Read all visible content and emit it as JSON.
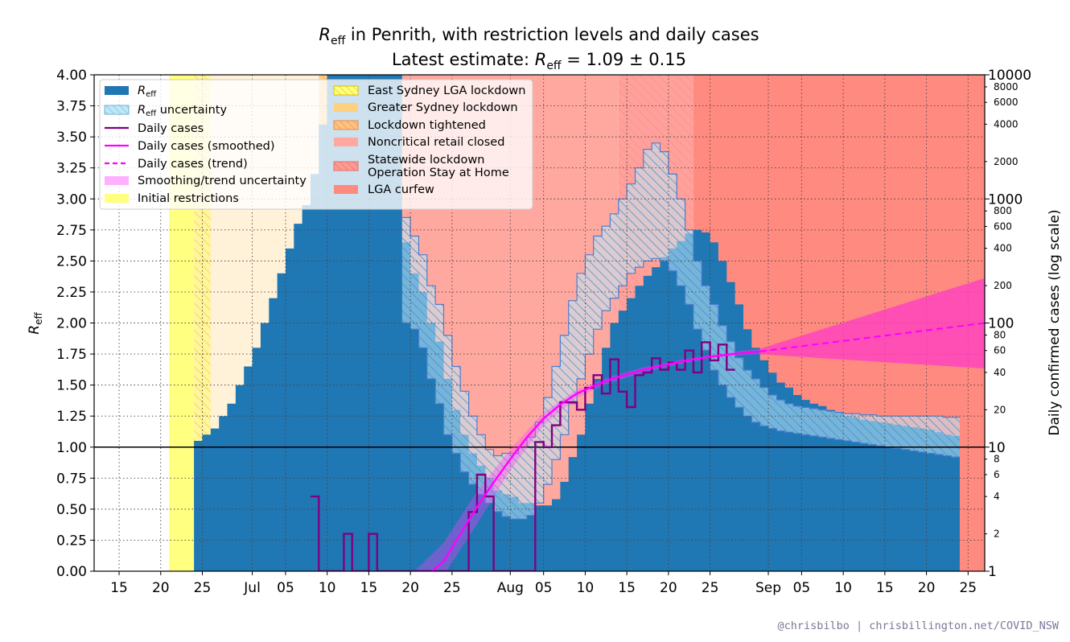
{
  "chart_data": {
    "type": "step-line",
    "title": "R_eff in Penrith, with restriction levels and daily cases",
    "subtitle": "Latest estimate: R_eff = 1.09 ± 0.15",
    "title_parts": {
      "r": "R",
      "eff": "eff",
      "title_rest": " in Penrith, with restriction levels and daily cases",
      "sub_pre": "Latest estimate: ",
      "sub_post": " = 1.09 ± 0.15"
    },
    "ylabel_left": "R_eff",
    "ylabel_right": "Daily confirmed cases (log scale)",
    "credit": "@chrisbilbo | chrisbillington.net/COVID_NSW",
    "x_range": [
      "2021-06-12",
      "2021-09-27"
    ],
    "y_left_range": [
      0,
      4
    ],
    "y_right_range": [
      1,
      10000
    ],
    "y_right_scale": "log",
    "grid": true,
    "x_ticks": [
      "15",
      "20",
      "25",
      "Jul",
      "05",
      "10",
      "15",
      "20",
      "25",
      "Aug",
      "05",
      "10",
      "15",
      "20",
      "25",
      "Sep",
      "05",
      "10",
      "15",
      "20",
      "25"
    ],
    "x_tick_dates": [
      "2021-06-15",
      "2021-06-20",
      "2021-06-25",
      "2021-07-01",
      "2021-07-05",
      "2021-07-10",
      "2021-07-15",
      "2021-07-20",
      "2021-07-25",
      "2021-08-01",
      "2021-08-05",
      "2021-08-10",
      "2021-08-15",
      "2021-08-20",
      "2021-08-25",
      "2021-09-01",
      "2021-09-05",
      "2021-09-10",
      "2021-09-15",
      "2021-09-20",
      "2021-09-25"
    ],
    "y_left_ticks": [
      "0.00",
      "0.25",
      "0.50",
      "0.75",
      "1.00",
      "1.25",
      "1.50",
      "1.75",
      "2.00",
      "2.25",
      "2.50",
      "2.75",
      "3.00",
      "3.25",
      "3.50",
      "3.75",
      "4.00"
    ],
    "y_right_major_ticks": [
      "1",
      "10",
      "100",
      "1000",
      "10000"
    ],
    "y_right_minor_ticks": [
      "2",
      "4",
      "6",
      "8",
      "20",
      "40",
      "60",
      "80",
      "200",
      "400",
      "600",
      "800",
      "2000",
      "4000",
      "6000",
      "8000"
    ],
    "restriction_periods": [
      {
        "name": "Initial restrictions",
        "start": "2021-06-21",
        "end": "2021-06-24",
        "color": "#ffff80"
      },
      {
        "name": "East Sydney LGA lockdown",
        "start": "2021-06-24",
        "end": "2021-06-26",
        "color": "#fff4a0"
      },
      {
        "name": "Greater Sydney lockdown",
        "start": "2021-06-26",
        "end": "2021-07-09",
        "color": "#fff2d9"
      },
      {
        "name": "Lockdown tightened",
        "start": "2021-07-09",
        "end": "2021-07-18",
        "color": "#ffcc80"
      },
      {
        "name": "Noncritical retail closed",
        "start": "2021-07-18",
        "end": "2021-08-14",
        "color": "#ffa8a0"
      },
      {
        "name": "Statewide lockdown Operation Stay at Home",
        "start": "2021-08-14",
        "end": "2021-08-23",
        "color": "#ffa09a"
      },
      {
        "name": "LGA curfew",
        "start": "2021-08-23",
        "end": "2021-09-27",
        "color": "#ff8a80"
      }
    ],
    "series": [
      {
        "name": "R_eff",
        "start": "2021-06-24",
        "values": [
          1.05,
          1.1,
          1.15,
          1.25,
          1.35,
          1.5,
          1.65,
          1.8,
          2.0,
          2.2,
          2.4,
          2.6,
          2.8,
          2.95,
          3.2,
          3.6,
          4.0,
          4.0,
          4.0,
          4.0,
          4.0,
          4.0,
          4.0,
          4.0,
          4.0,
          2.65,
          2.4,
          2.25,
          2.0,
          1.85,
          1.55,
          1.3,
          1.1,
          0.95,
          0.85,
          0.75,
          0.65,
          0.62,
          0.6,
          0.55,
          0.55,
          0.53,
          0.53,
          0.58,
          0.72,
          0.92,
          1.1,
          1.35,
          1.55,
          1.8,
          2.0,
          2.1,
          2.2,
          2.3,
          2.38,
          2.45,
          2.53,
          2.6,
          2.66,
          2.72,
          2.75,
          2.73,
          2.65,
          2.5,
          2.33,
          2.15,
          1.95,
          1.8,
          1.7,
          1.6,
          1.52,
          1.48,
          1.42,
          1.38,
          1.35,
          1.33,
          1.3,
          1.28,
          1.25,
          1.24,
          1.22,
          1.21,
          1.2,
          1.19,
          1.18,
          1.17,
          1.16,
          1.15,
          1.14,
          1.12,
          1.1,
          1.09
        ],
        "upper": [
          null,
          null,
          null,
          null,
          null,
          null,
          null,
          null,
          null,
          null,
          null,
          null,
          null,
          null,
          null,
          null,
          null,
          null,
          null,
          null,
          null,
          null,
          null,
          null,
          null,
          2.85,
          2.7,
          2.55,
          2.3,
          2.15,
          1.9,
          1.65,
          1.45,
          1.25,
          1.1,
          0.98,
          0.93,
          0.95,
          0.95,
          1.0,
          1.08,
          1.2,
          1.4,
          1.65,
          1.9,
          2.18,
          2.4,
          2.55,
          2.7,
          2.78,
          2.88,
          3.0,
          3.12,
          3.25,
          3.4,
          3.45,
          3.38,
          3.2,
          3.0,
          2.75,
          2.5,
          2.3,
          2.15,
          1.98,
          1.85,
          1.72,
          1.62,
          1.55,
          1.48,
          1.42,
          1.38,
          1.35,
          1.33,
          1.32,
          1.31,
          1.3,
          1.29,
          1.28,
          1.27,
          1.27,
          1.26,
          1.26,
          1.25,
          1.25,
          1.25,
          1.25,
          1.25,
          1.25,
          1.25,
          1.25,
          1.24,
          1.24
        ],
        "lower": [
          null,
          null,
          null,
          null,
          null,
          null,
          null,
          null,
          null,
          null,
          null,
          null,
          null,
          null,
          null,
          null,
          null,
          null,
          null,
          null,
          null,
          null,
          null,
          null,
          null,
          2.0,
          1.95,
          1.8,
          1.55,
          1.35,
          1.1,
          0.95,
          0.8,
          0.7,
          0.62,
          0.55,
          0.48,
          0.44,
          0.42,
          0.42,
          0.45,
          0.55,
          0.7,
          0.9,
          1.1,
          1.35,
          1.55,
          1.75,
          1.95,
          2.1,
          2.2,
          2.3,
          2.4,
          2.45,
          2.5,
          2.52,
          2.5,
          2.42,
          2.3,
          2.15,
          1.95,
          1.78,
          1.62,
          1.5,
          1.4,
          1.32,
          1.25,
          1.2,
          1.17,
          1.15,
          1.13,
          1.12,
          1.11,
          1.1,
          1.09,
          1.08,
          1.07,
          1.06,
          1.05,
          1.04,
          1.03,
          1.02,
          1.01,
          1.0,
          0.99,
          0.98,
          0.97,
          0.96,
          0.95,
          0.94,
          0.93,
          0.92
        ]
      },
      {
        "name": "Daily cases",
        "start": "2021-07-08",
        "values": [
          4,
          1,
          1,
          1,
          2,
          1,
          1,
          2,
          1,
          1,
          1,
          1,
          1,
          1,
          1,
          1,
          1,
          1,
          1,
          3,
          6,
          4,
          1,
          1,
          1,
          1,
          1,
          11,
          10,
          15,
          23,
          23,
          20,
          30,
          38,
          27,
          51,
          28,
          21,
          38,
          40,
          52,
          42,
          48,
          42,
          60,
          40,
          70,
          50,
          67,
          42
        ]
      },
      {
        "name": "Daily cases (smoothed)",
        "dates": [
          "2021-07-20",
          "2021-07-22",
          "2021-07-24",
          "2021-07-26",
          "2021-07-28",
          "2021-07-30",
          "2021-08-01",
          "2021-08-03",
          "2021-08-05",
          "2021-08-07",
          "2021-08-09",
          "2021-08-11",
          "2021-08-13",
          "2021-08-15",
          "2021-08-17",
          "2021-08-19",
          "2021-08-21",
          "2021-08-23",
          "2021-08-25",
          "2021-08-27",
          "2021-08-29",
          "2021-08-31"
        ],
        "values": [
          0.5,
          0.75,
          1.2,
          2.0,
          3.3,
          5.2,
          8.0,
          12.0,
          17.0,
          22.0,
          27.0,
          31.0,
          35.0,
          38.5,
          42.0,
          45.0,
          48.0,
          51.0,
          53.5,
          55.5,
          57.5,
          59.0
        ]
      },
      {
        "name": "Daily cases (trend)",
        "dates": [
          "2021-08-31",
          "2021-09-27"
        ],
        "values": [
          59.0,
          100.0
        ],
        "upper": [
          62.0,
          230.0
        ],
        "lower": [
          56.0,
          43.0
        ]
      }
    ],
    "smoothing_uncertainty": {
      "dates": [
        "2021-07-20",
        "2021-07-24",
        "2021-07-28",
        "2021-08-01",
        "2021-08-05",
        "2021-08-09",
        "2021-08-13",
        "2021-08-17",
        "2021-08-21",
        "2021-08-25",
        "2021-08-29",
        "2021-08-31"
      ],
      "upper": [
        0.7,
        1.7,
        4.4,
        9.6,
        19.0,
        29.0,
        37.0,
        44.0,
        50.0,
        55.0,
        60.0,
        62.0
      ],
      "lower": [
        0.3,
        0.85,
        2.4,
        6.5,
        15.0,
        25.0,
        33.0,
        40.0,
        46.0,
        52.0,
        55.0,
        56.0
      ]
    },
    "hline_y": 1.0,
    "legend": {
      "placement": "upper-left",
      "col1": [
        {
          "label": "R_eff",
          "kind": "fill",
          "color": "#1f77b4"
        },
        {
          "label": "R_eff uncertainty",
          "kind": "hatch-fill",
          "color": "#bfe8f7",
          "edge": "#6fb1d9"
        },
        {
          "label": "Daily cases",
          "kind": "line",
          "color": "#800080"
        },
        {
          "label": "Daily cases (smoothed)",
          "kind": "line",
          "color": "#ff00ff"
        },
        {
          "label": "Daily cases (trend)",
          "kind": "dashed",
          "color": "#ff00ff"
        },
        {
          "label": "Smoothing/trend uncertainty",
          "kind": "fill",
          "color": "#ffb0ff"
        },
        {
          "label": "Initial restrictions",
          "kind": "fill",
          "color": "#ffff80"
        }
      ],
      "col2": [
        {
          "label": "East Sydney LGA lockdown",
          "kind": "hatch-fill",
          "color": "#ffff80",
          "edge": "#e0c000"
        },
        {
          "label": "Greater Sydney lockdown",
          "kind": "fill",
          "color": "#ffd080"
        },
        {
          "label": "Lockdown tightened",
          "kind": "hatch-fill",
          "color": "#ffc080",
          "edge": "#e09050"
        },
        {
          "label": "Noncritical retail closed",
          "kind": "fill",
          "color": "#ffa8a0"
        },
        {
          "label": "Statewide lockdown\nOperation Stay at Home",
          "kind": "hatch-fill",
          "color": "#ff9a90",
          "edge": "#e07070"
        },
        {
          "label": "LGA curfew",
          "kind": "fill",
          "color": "#ff8a80"
        }
      ]
    }
  }
}
